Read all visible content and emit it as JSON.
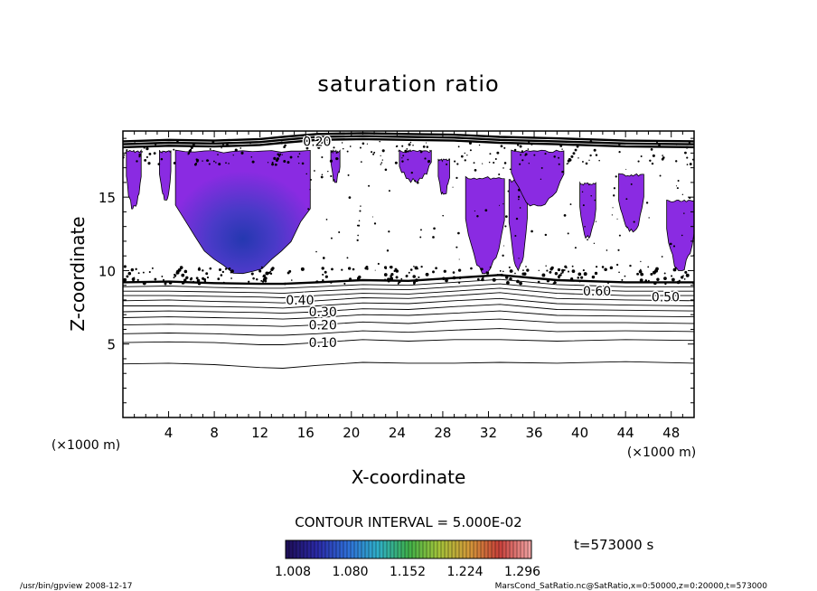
{
  "chart_data": {
    "type": "contour",
    "title": "saturation ratio",
    "xlabel": "X-coordinate",
    "ylabel": "Z-coordinate",
    "x_unit": "(×1000 m)",
    "y_unit": "(×1000 m)",
    "xlim": [
      0,
      50
    ],
    "ylim": [
      0,
      19.5
    ],
    "x_ticks": [
      4,
      8,
      12,
      16,
      20,
      24,
      28,
      32,
      36,
      40,
      44,
      48
    ],
    "y_ticks": [
      5,
      10,
      15
    ],
    "contour_interval_text": "CONTOUR INTERVAL = 5.000E-02",
    "time_text": "t=573000 s",
    "colorbar_ticks": [
      "1.008",
      "1.080",
      "1.152",
      "1.224",
      "1.296"
    ],
    "colorbar_colors": [
      "#1e0f5a",
      "#2b2aa8",
      "#2f6fd8",
      "#2fb0c8",
      "#3fb04a",
      "#a4c43a",
      "#d49a3a",
      "#c8403a",
      "#f0a0a0"
    ],
    "shade_color": "#8a2be2",
    "core_color": "#2438b0",
    "contour_levels_labeled": [
      {
        "label": "0.10",
        "x": 17.5,
        "z": 5.1
      },
      {
        "label": "0.20",
        "x": 17.5,
        "z": 6.3
      },
      {
        "label": "0.30",
        "x": 17.5,
        "z": 7.2
      },
      {
        "label": "0.40",
        "x": 15.5,
        "z": 8.0
      },
      {
        "label": "0.50",
        "x": 47.5,
        "z": 8.2
      },
      {
        "label": "0.60",
        "x": 41.5,
        "z": 8.6
      },
      {
        "label": "0.20",
        "x": 17.0,
        "z": 18.8
      }
    ],
    "contours": [
      {
        "z": [
          3.65,
          3.7,
          3.6,
          3.4,
          3.35,
          3.55,
          3.75,
          3.7,
          3.7,
          3.75,
          3.7,
          3.8,
          3.7
        ]
      },
      {
        "z": [
          5.1,
          5.15,
          5.1,
          4.95,
          4.95,
          5.1,
          5.3,
          5.2,
          5.3,
          5.3,
          5.2,
          5.3,
          5.25
        ]
      },
      {
        "z": [
          5.7,
          5.75,
          5.7,
          5.6,
          5.6,
          5.7,
          5.9,
          5.8,
          5.95,
          6.05,
          5.85,
          5.9,
          5.85
        ]
      },
      {
        "z": [
          6.3,
          6.35,
          6.3,
          6.25,
          6.2,
          6.3,
          6.5,
          6.4,
          6.6,
          6.7,
          6.45,
          6.45,
          6.4
        ]
      },
      {
        "z": [
          6.8,
          6.85,
          6.8,
          6.75,
          6.7,
          6.8,
          7.0,
          6.95,
          7.1,
          7.25,
          6.95,
          6.9,
          6.85
        ]
      },
      {
        "z": [
          7.2,
          7.25,
          7.2,
          7.15,
          7.1,
          7.2,
          7.4,
          7.35,
          7.55,
          7.7,
          7.35,
          7.3,
          7.25
        ]
      },
      {
        "z": [
          7.6,
          7.6,
          7.55,
          7.5,
          7.45,
          7.6,
          7.8,
          7.75,
          7.95,
          8.1,
          7.75,
          7.65,
          7.6
        ]
      },
      {
        "z": [
          7.95,
          8.0,
          7.9,
          7.85,
          7.8,
          7.95,
          8.15,
          8.1,
          8.3,
          8.5,
          8.1,
          8.0,
          7.95
        ]
      },
      {
        "z": [
          8.3,
          8.3,
          8.25,
          8.2,
          8.15,
          8.3,
          8.45,
          8.4,
          8.6,
          8.8,
          8.45,
          8.3,
          8.3
        ]
      },
      {
        "z": [
          8.6,
          8.6,
          8.55,
          8.5,
          8.45,
          8.6,
          8.75,
          8.7,
          8.9,
          9.1,
          8.75,
          8.6,
          8.6
        ]
      },
      {
        "z": [
          8.9,
          8.95,
          8.85,
          8.8,
          8.8,
          8.9,
          9.05,
          9.0,
          9.2,
          9.4,
          9.05,
          8.9,
          8.9
        ]
      },
      {
        "z": [
          9.2,
          9.25,
          9.15,
          9.1,
          9.1,
          9.2,
          9.35,
          9.3,
          9.5,
          9.7,
          9.35,
          9.2,
          9.2
        ]
      },
      {
        "z": [
          18.4,
          18.5,
          18.45,
          18.55,
          18.7,
          18.9,
          18.95,
          18.9,
          18.85,
          18.7,
          18.6,
          18.45,
          18.4
        ]
      },
      {
        "z": [
          18.6,
          18.7,
          18.65,
          18.75,
          18.9,
          19.1,
          19.15,
          19.1,
          19.05,
          18.9,
          18.8,
          18.65,
          18.6
        ]
      },
      {
        "z": [
          18.8,
          18.9,
          18.85,
          18.95,
          19.1,
          19.3,
          19.35,
          19.3,
          19.25,
          19.1,
          19.0,
          18.85,
          18.8
        ]
      }
    ],
    "contour_x": [
      0,
      4,
      8,
      12,
      14,
      17,
      21,
      25,
      29,
      33,
      38,
      44,
      50
    ],
    "supersaturated_regions": [
      {
        "x0": 0.3,
        "x1": 1.6,
        "z0": 14.2,
        "z1": 18.2
      },
      {
        "x0": 4.6,
        "x1": 16.4,
        "z0": 9.8,
        "z1": 18.2
      },
      {
        "x0": 3.2,
        "x1": 4.2,
        "z0": 14.8,
        "z1": 18.2
      },
      {
        "x0": 18.2,
        "x1": 19.0,
        "z0": 16.0,
        "z1": 18.2
      },
      {
        "x0": 24.2,
        "x1": 27.0,
        "z0": 16.0,
        "z1": 18.2
      },
      {
        "x0": 27.6,
        "x1": 28.6,
        "z0": 15.2,
        "z1": 17.6
      },
      {
        "x0": 30.0,
        "x1": 33.4,
        "z0": 9.8,
        "z1": 16.4
      },
      {
        "x0": 33.8,
        "x1": 35.4,
        "z0": 10.0,
        "z1": 16.2
      },
      {
        "x0": 34.0,
        "x1": 38.6,
        "z0": 14.4,
        "z1": 18.2
      },
      {
        "x0": 40.0,
        "x1": 41.4,
        "z0": 12.2,
        "z1": 16.0
      },
      {
        "x0": 43.4,
        "x1": 45.6,
        "z0": 12.6,
        "z1": 16.6
      },
      {
        "x0": 47.6,
        "x1": 50.0,
        "z0": 10.0,
        "z1": 14.8
      }
    ]
  },
  "footer": {
    "left": "/usr/bin/gpview  2008-12-17",
    "right": "MarsCond_SatRatio.nc@SatRatio,x=0:50000,z=0:20000,t=573000"
  }
}
